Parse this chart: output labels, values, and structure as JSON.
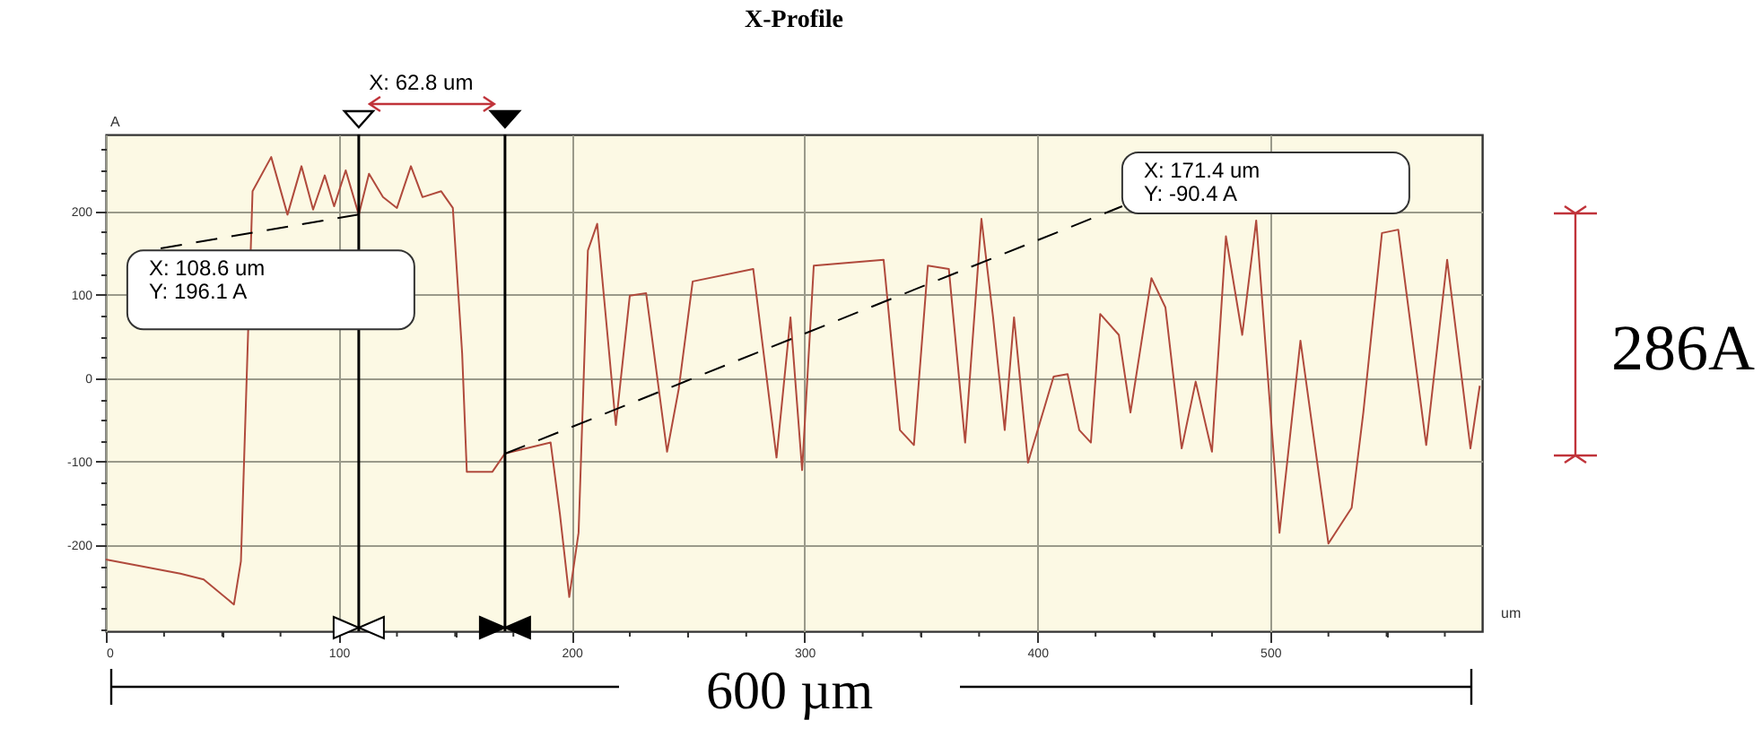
{
  "chart_data": {
    "type": "line",
    "title": "X-Profile",
    "xlabel": "um",
    "ylabel": "A",
    "x": [
      0,
      32,
      42,
      55,
      58,
      63,
      71,
      78,
      84,
      89,
      94,
      98,
      103,
      108.6,
      113,
      119,
      125,
      131,
      136,
      144,
      149,
      153,
      155,
      166,
      171.4,
      191,
      195,
      199,
      203,
      207,
      211,
      219,
      225,
      232,
      241,
      246,
      252,
      278,
      288,
      294,
      299,
      304,
      334,
      341,
      347,
      353,
      362,
      369,
      376,
      381,
      386,
      390,
      396,
      407,
      413,
      418,
      423,
      427,
      435,
      440,
      449,
      455,
      462,
      468,
      475,
      481,
      488,
      494,
      504,
      513,
      525,
      535,
      540,
      548,
      555,
      567,
      576,
      586,
      590
    ],
    "series": [
      {
        "color": "#b04a3c",
        "values": [
          -217,
          -234,
          -241,
          -271,
          -219,
          224,
          265,
          196,
          254,
          202,
          243,
          206,
          249,
          196,
          245,
          217,
          204,
          254,
          217,
          224,
          204,
          30,
          -112,
          -112,
          -90,
          -77,
          -163,
          -262,
          -185,
          153,
          185,
          -56,
          99,
          102,
          -88,
          -13,
          116,
          131,
          -95,
          73,
          -110,
          135,
          142,
          -62,
          -80,
          135,
          131,
          -77,
          191,
          73,
          -62,
          73,
          -101,
          2,
          5,
          -62,
          -77,
          77,
          52,
          -41,
          120,
          85,
          -84,
          -4,
          -88,
          170,
          52,
          189,
          -185,
          45,
          -198,
          -155,
          -41,
          174,
          178,
          -80,
          142,
          -84,
          -9
        ]
      }
    ],
    "xlim": [
      0,
      591
    ],
    "ylim": [
      -303,
      292
    ],
    "xticks": [
      0,
      {
        "value": 25,
        "label": null
      },
      {
        "value": 50,
        "label": null
      },
      {
        "value": 75,
        "label": null
      },
      100,
      {
        "value": 125,
        "label": null
      },
      {
        "value": 150,
        "label": null
      },
      {
        "value": 175,
        "label": null
      },
      200,
      {
        "value": 225,
        "label": null
      },
      {
        "value": 250,
        "label": null
      },
      {
        "value": 275,
        "label": null
      },
      300,
      {
        "value": 325,
        "label": null
      },
      {
        "value": 350,
        "label": null
      },
      {
        "value": 375,
        "label": null
      },
      400,
      {
        "value": 425,
        "label": null
      },
      {
        "value": 450,
        "label": null
      },
      {
        "value": 475,
        "label": null
      },
      500,
      {
        "value": 525,
        "label": null
      },
      {
        "value": 550,
        "label": null
      },
      {
        "value": 575,
        "label": null
      }
    ],
    "yticks": [
      {
        "value": -300,
        "label": null
      },
      {
        "value": -275,
        "label": null
      },
      {
        "value": -250,
        "label": null
      },
      {
        "value": -225,
        "label": null
      },
      -200,
      {
        "value": -175,
        "label": null
      },
      {
        "value": -150,
        "label": null
      },
      {
        "value": -125,
        "label": null
      },
      -100,
      {
        "value": -75,
        "label": null
      },
      {
        "value": -50,
        "label": null
      },
      {
        "value": -25,
        "label": null
      },
      0,
      {
        "value": 25,
        "label": null
      },
      {
        "value": 50,
        "label": null
      },
      {
        "value": 75,
        "label": null
      },
      100,
      {
        "value": 125,
        "label": null
      },
      {
        "value": 150,
        "label": null
      },
      {
        "value": 175,
        "label": null
      },
      200,
      {
        "value": 225,
        "label": null
      },
      {
        "value": 250,
        "label": null
      },
      {
        "value": 275,
        "label": null
      }
    ],
    "grid": true,
    "legend": false,
    "marker": "none",
    "line_style": "solid",
    "ref_lines": [
      {
        "axis": "x",
        "value": 108.6,
        "color": "#000000"
      },
      {
        "axis": "x",
        "value": 171.4,
        "color": "#000000"
      }
    ],
    "annotations": [
      "X: 62.8 um",
      {
        "text": "X: 108.6 um\nY: 196.1 A",
        "x": 108.6,
        "y": 196.1
      },
      {
        "text": "X: 171.4 um\nY: -90.4 A",
        "x": 171.4,
        "y": -90.4
      },
      "286A",
      "600 µm"
    ]
  }
}
